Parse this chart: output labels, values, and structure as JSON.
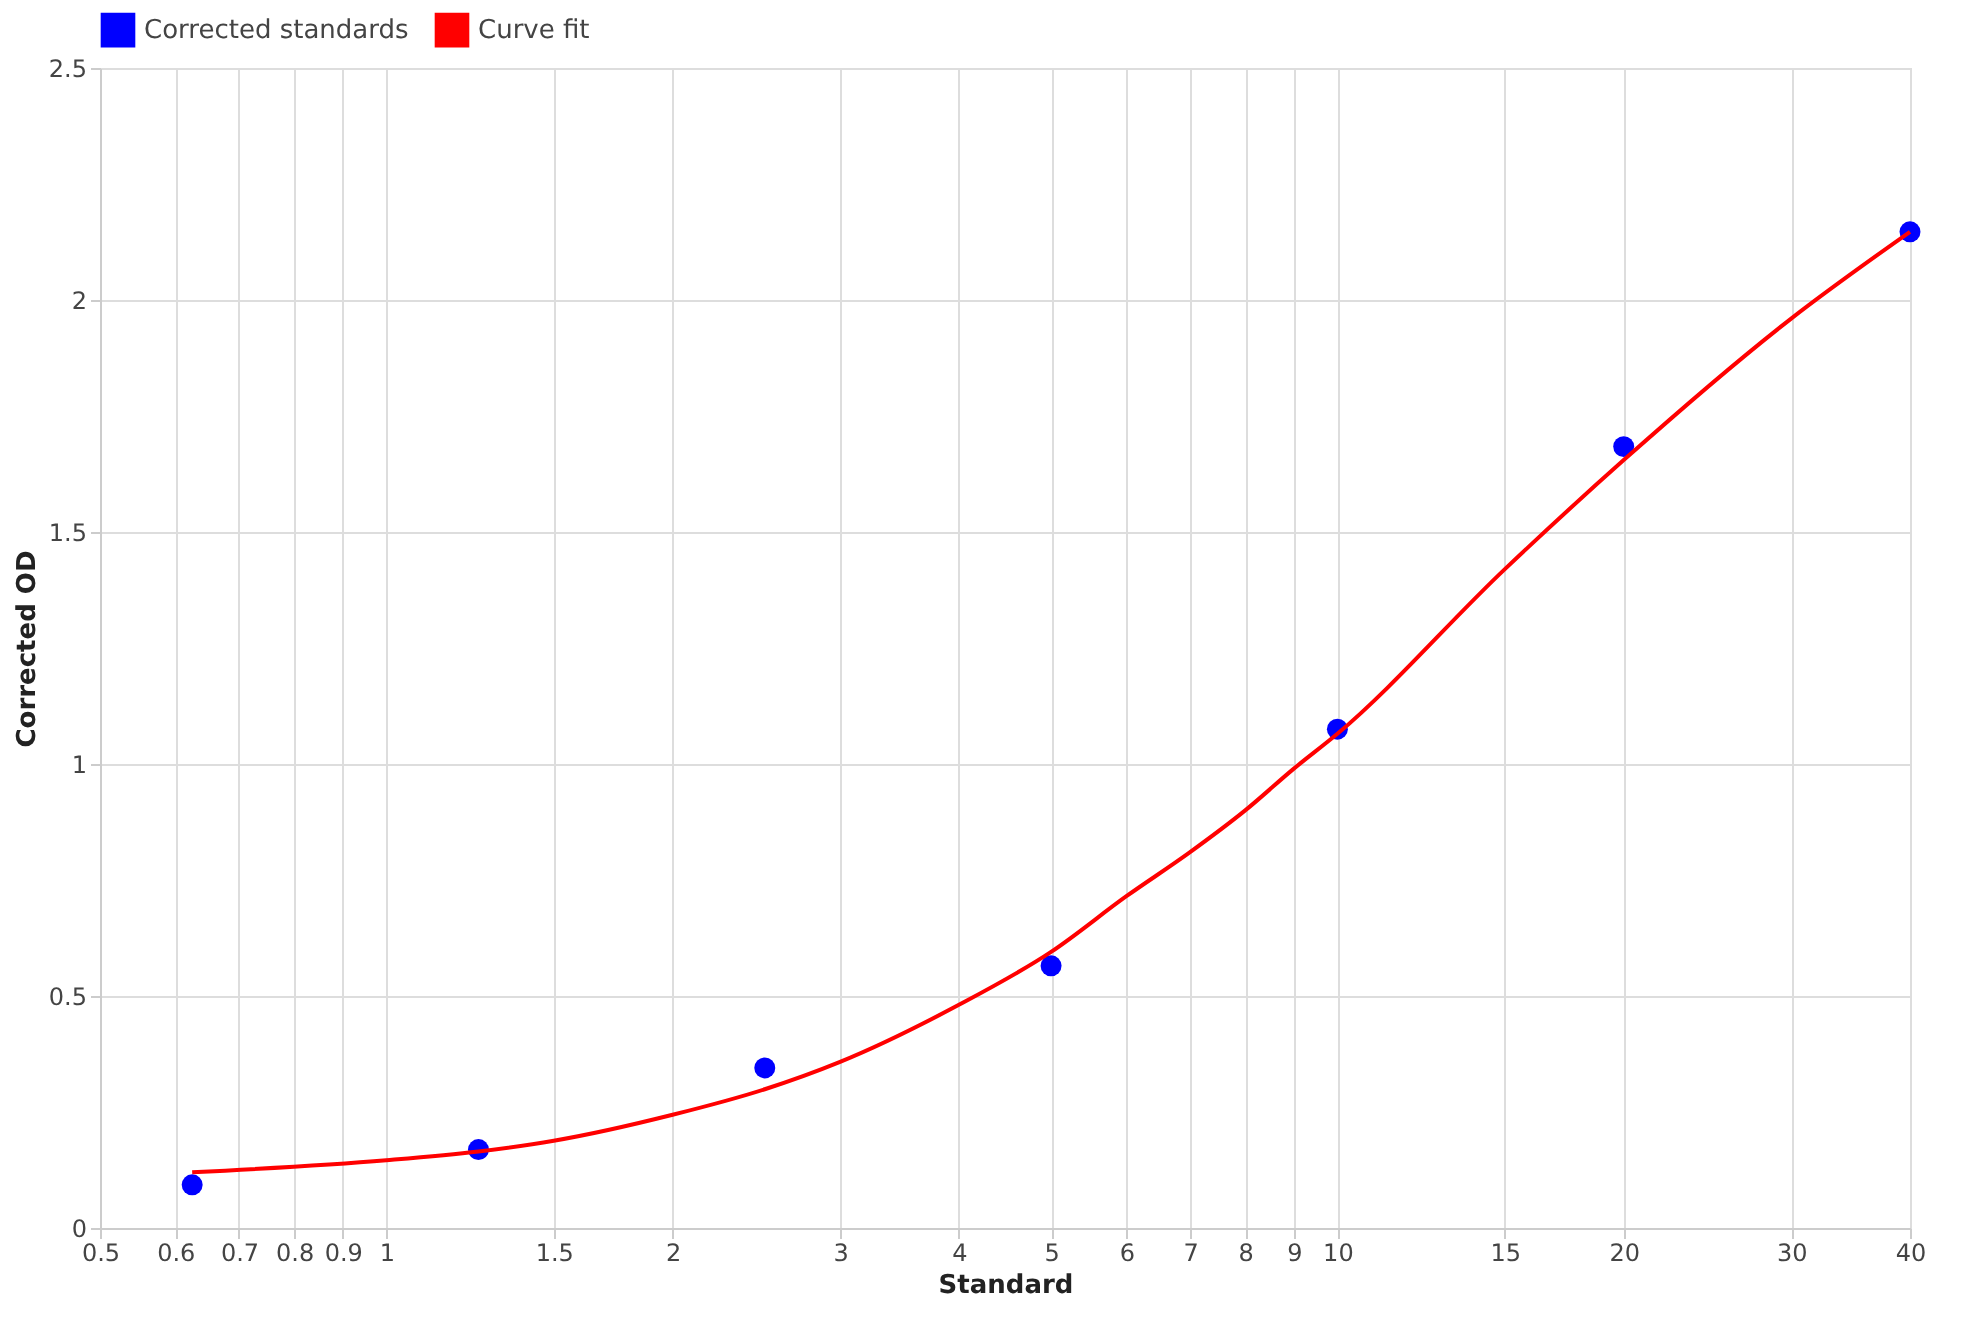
{
  "chart_data": {
    "type": "scatter",
    "xlabel": "Standard",
    "ylabel": "Corrected OD",
    "log": "x",
    "grid": true,
    "legend": "top",
    "xlim": [
      0.5,
      40
    ],
    "xticks": [
      0.5,
      0.6,
      0.7,
      0.8,
      0.9,
      1,
      1.5,
      2,
      3,
      4,
      5,
      6,
      7,
      8,
      9,
      10,
      15,
      20,
      30,
      40
    ],
    "ylim": [
      0,
      2.5
    ],
    "yticks": [
      0,
      0.5,
      1,
      1.5,
      2,
      2.5
    ],
    "series": [
      {
        "name": "Corrected standards",
        "marker": "circle",
        "color": "#0000ff",
        "x": [
          0.625,
          1.25,
          2.5,
          5,
          10,
          20,
          40
        ],
        "values": [
          0.093,
          0.169,
          0.345,
          0.565,
          1.075,
          1.684,
          2.147
        ]
      },
      {
        "name": "Curve fit",
        "type": "line",
        "marker": "none",
        "color": "#ff0000",
        "x": [
          0.625,
          1,
          1.25,
          1.5,
          2,
          2.5,
          3,
          4,
          5,
          6,
          7,
          8,
          9,
          10,
          15,
          20,
          30,
          40
        ],
        "values": [
          0.12,
          0.146,
          0.165,
          0.188,
          0.244,
          0.299,
          0.358,
          0.481,
          0.595,
          0.715,
          0.81,
          0.9,
          0.99,
          1.065,
          1.42,
          1.655,
          1.96,
          2.147
        ]
      }
    ]
  }
}
